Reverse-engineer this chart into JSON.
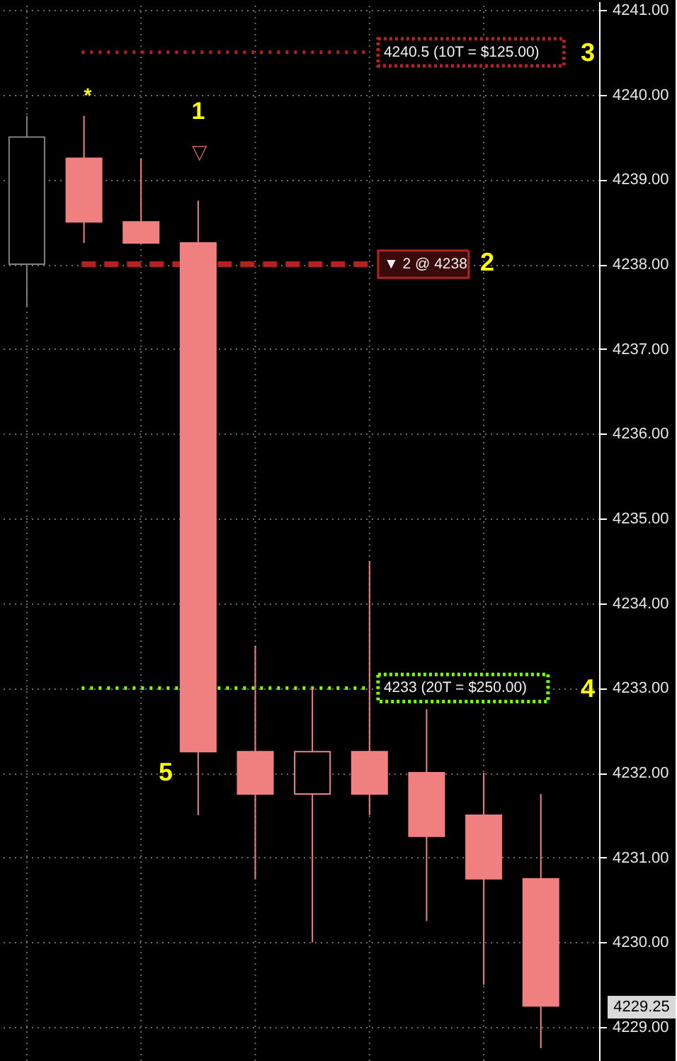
{
  "chart_data": {
    "type": "candlestick",
    "categories": [
      null,
      null,
      null,
      null,
      null,
      null,
      null,
      null,
      null,
      null
    ],
    "ohlc": [
      [
        4238.0,
        4239.75,
        4237.5,
        4239.5
      ],
      [
        4239.25,
        4239.75,
        4238.25,
        4238.5
      ],
      [
        4238.5,
        4239.25,
        4238.25,
        4238.25
      ],
      [
        4238.25,
        4238.75,
        4231.5,
        4232.25
      ],
      [
        4232.25,
        4233.5,
        4230.75,
        4231.75
      ],
      [
        4231.75,
        4233.0,
        4230.0,
        4232.25
      ],
      [
        4232.25,
        4234.5,
        4231.5,
        4231.75
      ],
      [
        4232.0,
        4232.75,
        4230.25,
        4231.25
      ],
      [
        4231.5,
        4232.0,
        4229.5,
        4230.75
      ],
      [
        4230.75,
        4231.75,
        4228.75,
        4229.25
      ]
    ],
    "colors": [
      "#808080",
      "#f08080",
      "#f08080",
      "#f08080",
      "#f08080",
      "#f08080",
      "#f08080",
      "#f08080",
      "#f08080",
      "#f08080"
    ],
    "ylim": [
      4228.6,
      4241.1
    ],
    "yticks": [
      {
        "value": 4229,
        "label": "4229.00"
      },
      {
        "value": 4230,
        "label": "4230.00"
      },
      {
        "value": 4231,
        "label": "4231.00"
      },
      {
        "value": 4232,
        "label": "4232.00"
      },
      {
        "value": 4233,
        "label": "4233.00"
      },
      {
        "value": 4234,
        "label": "4234.00"
      },
      {
        "value": 4235,
        "label": "4235.00"
      },
      {
        "value": 4236,
        "label": "4236.00"
      },
      {
        "value": 4237,
        "label": "4237.00"
      },
      {
        "value": 4238,
        "label": "4238.00"
      },
      {
        "value": 4239,
        "label": "4239.00"
      },
      {
        "value": 4240,
        "label": "4240.00"
      },
      {
        "value": 4241,
        "label": "4241.00"
      }
    ],
    "grid": true,
    "ref_lines": [
      {
        "axis": "y",
        "value": 4240.5,
        "label": "4240.5 (10T = $125.00)",
        "color": "#b22222",
        "line_style": "dotted"
      },
      {
        "axis": "y",
        "value": 4238,
        "label": "▼ 2 @ 4238",
        "color": "#b22222",
        "line_style": "dashed"
      },
      {
        "axis": "y",
        "value": 4233,
        "label": "4233 (20T = $250.00)",
        "color": "#7cfc00",
        "line_style": "dotted"
      }
    ],
    "annotations": [
      "*",
      "1",
      "▽",
      "2",
      "3",
      "4",
      "5",
      "4229.25"
    ]
  }
}
